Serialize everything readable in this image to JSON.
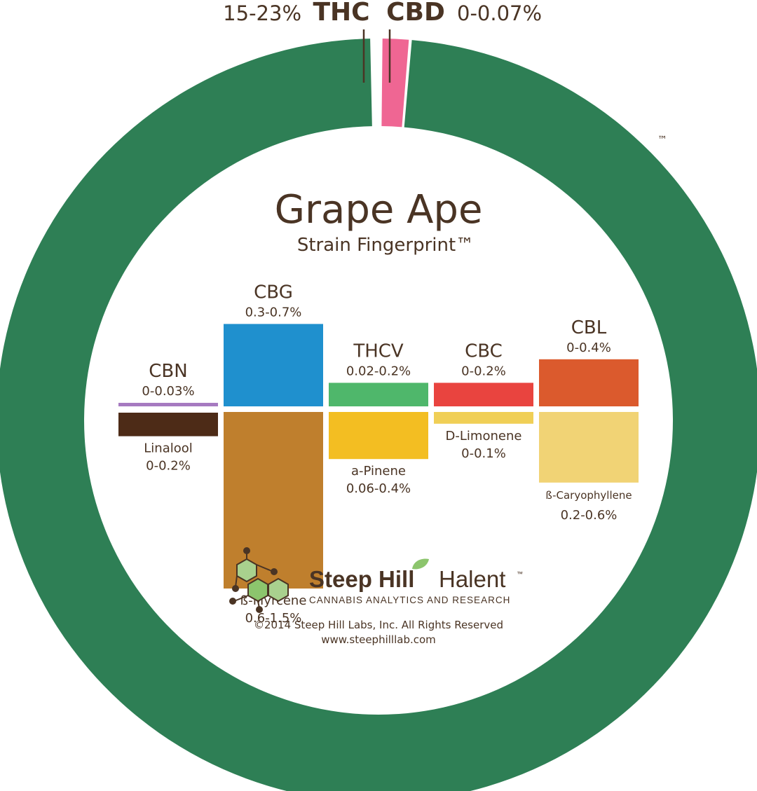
{
  "chart_data": {
    "type": "donut-bar",
    "title": "Grape Ape",
    "subtitle": "Strain Fingerprint™",
    "trademark": "™",
    "donut": {
      "slices": [
        {
          "name": "THC",
          "range": "15-23%",
          "value_pct": 98.9,
          "color": "#2e7f55"
        },
        {
          "name": "CBD",
          "range": "0-0.07%",
          "value_pct": 1.1,
          "color": "#ef6693"
        }
      ]
    },
    "bars": [
      {
        "top": {
          "name": "CBN",
          "range": "0-0.03%",
          "value": 0.03,
          "color": "#a67ac0"
        },
        "bottom": {
          "name": "Linalool",
          "range": "0-0.2%",
          "value": 0.2,
          "color": "#4d2b17"
        }
      },
      {
        "top": {
          "name": "CBG",
          "range": "0.3-0.7%",
          "value": 0.7,
          "color": "#1f90ce"
        },
        "bottom": {
          "name": "ß-Myrcene",
          "range": "0.6-1.5%",
          "value": 1.5,
          "color": "#bf7f2d"
        }
      },
      {
        "top": {
          "name": "THCV",
          "range": "0.02-0.2%",
          "value": 0.2,
          "color": "#4fb76b"
        },
        "bottom": {
          "name": "a-Pinene",
          "range": "0.06-0.4%",
          "value": 0.4,
          "color": "#f3be22"
        }
      },
      {
        "top": {
          "name": "CBC",
          "range": "0-0.2%",
          "value": 0.2,
          "color": "#e9443f"
        },
        "bottom": {
          "name": "D-Limonene",
          "range": "0-0.1%",
          "value": 0.1,
          "color": "#f0cf56"
        }
      },
      {
        "top": {
          "name": "CBL",
          "range": "0-0.4%",
          "value": 0.4,
          "color": "#db5a2d"
        },
        "bottom": {
          "name": "ß-Caryophyllene",
          "range": "0.2-0.6%",
          "value": 0.6,
          "color": "#f1d375"
        }
      }
    ]
  },
  "branding": {
    "logo_bold": "Steep Hill",
    "logo_light": "Halent",
    "logo_tm": "™",
    "tagline": "CANNABIS ANALYTICS AND RESEARCH",
    "copyright": "©2014 Steep Hill Labs, Inc. All Rights Reserved",
    "website": "www.steephilllab.com"
  }
}
